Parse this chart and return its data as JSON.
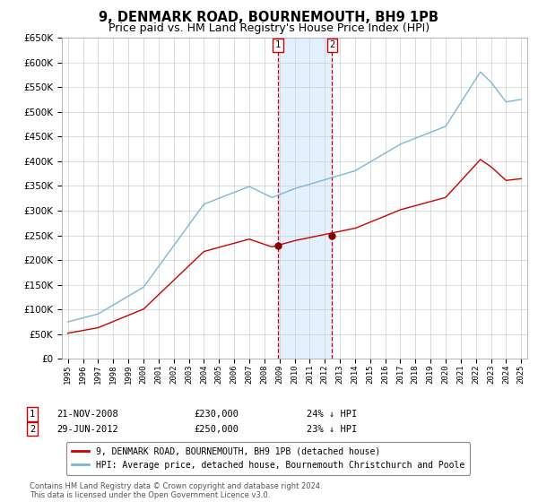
{
  "title": "9, DENMARK ROAD, BOURNEMOUTH, BH9 1PB",
  "subtitle": "Price paid vs. HM Land Registry's House Price Index (HPI)",
  "title_fontsize": 10.5,
  "subtitle_fontsize": 9,
  "sale1_date": "21-NOV-2008",
  "sale1_year": 2008.89,
  "sale1_price": 230000,
  "sale2_date": "29-JUN-2012",
  "sale2_year": 2012.49,
  "sale2_price": 250000,
  "legend1": "9, DENMARK ROAD, BOURNEMOUTH, BH9 1PB (detached house)",
  "legend2": "HPI: Average price, detached house, Bournemouth Christchurch and Poole",
  "sale1_info_date": "21-NOV-2008",
  "sale1_info_price": "£230,000",
  "sale1_info_pct": "24% ↓ HPI",
  "sale2_info_date": "29-JUN-2012",
  "sale2_info_price": "£250,000",
  "sale2_info_pct": "23% ↓ HPI",
  "footer": "Contains HM Land Registry data © Crown copyright and database right 2024.\nThis data is licensed under the Open Government Licence v3.0.",
  "hpi_color": "#7ab8d4",
  "price_color": "#cc0000",
  "marker_color": "#880000",
  "vline_color": "#cc0000",
  "shade_color": "#ddeeff",
  "ylim": [
    0,
    650000
  ],
  "yticks": [
    0,
    50000,
    100000,
    150000,
    200000,
    250000,
    300000,
    350000,
    400000,
    450000,
    500000,
    550000,
    600000,
    650000
  ],
  "background_color": "#ffffff",
  "grid_color": "#cccccc"
}
